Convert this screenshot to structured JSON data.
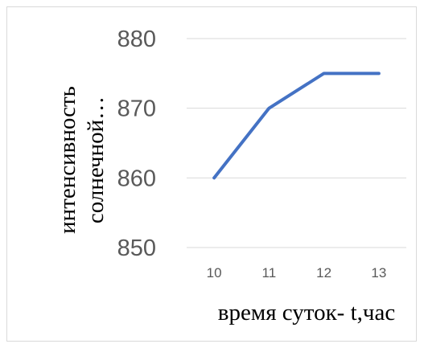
{
  "chart_data": {
    "type": "line",
    "x": [
      "10",
      "11",
      "12",
      "13"
    ],
    "series": [
      {
        "values": [
          860,
          870,
          875,
          875
        ],
        "color": "#4472c4"
      }
    ],
    "ylim": [
      850,
      880
    ],
    "yticks": [
      "850",
      "860",
      "870",
      "880"
    ],
    "ylabel_line1": "интенсивность",
    "ylabel_line2": "солнечной…",
    "xlabel": "время суток- t,час",
    "grid": true,
    "legend": "none"
  }
}
